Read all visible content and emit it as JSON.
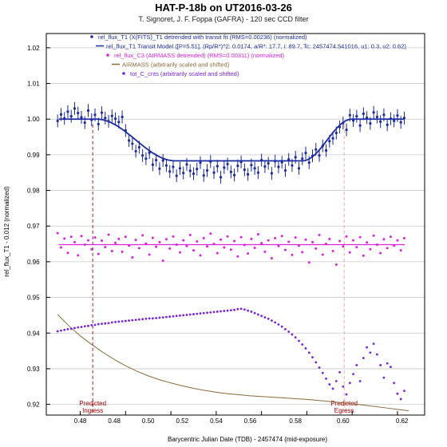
{
  "chart_data": {
    "type": "scatter",
    "title": "HAT-P-18b on UT2016-03-26",
    "subtitle": "T. Signoret, J. F. Foppa (GAFRA) - 120 sec CCD filter",
    "xlabel": "Barycentric Julian Date (TDB) - 2457474 (mid-exposure)",
    "ylabel": "rel_flux_T1 - 0.012 (normalized)",
    "xlim": [
      0.465,
      0.632
    ],
    "ylim": [
      0.917,
      1.024
    ],
    "yticks": [
      1.02,
      1.01,
      1.0,
      0.99,
      0.98,
      0.97,
      0.96,
      0.95,
      0.94,
      0.93,
      0.92
    ],
    "xticks": [
      0.48,
      0.5,
      0.52,
      0.54,
      0.56,
      0.58,
      0.6,
      0.62
    ],
    "ytick_labels": [
      "1.02",
      "1.01",
      "1.00",
      "0.99",
      "0.98",
      "0.97",
      "0.96",
      "0.95",
      "0.94",
      "0.93",
      "0.92"
    ],
    "xtick_labels": [
      "0.48",
      "0.48",
      "0.50",
      "0.52",
      "0.54",
      "0.56",
      "0.58",
      "0.60",
      "0.62"
    ],
    "xtick_label_positions": [
      0.48,
      0.495,
      0.51,
      0.525,
      0.54,
      0.555,
      0.575,
      0.596,
      0.622
    ],
    "grid": true,
    "legend": [
      {
        "label": "rel_flux_T1 (X(FITS)_T1 detrended with transit fit (RMS=0.00236) (normalized)",
        "color": "#1a2aa0",
        "marker": "dot-errorbar"
      },
      {
        "label": "rel_flux_T1 Transit Model ([P=5.51], (Rp/R*)^2: 0.0174, a/R*: 17.7, i: 89.7, Tc: 2457474.541016, u1: 0.3, u2: 0.62)",
        "color": "#1a2aa0",
        "marker": "line"
      },
      {
        "label": "rel_flux_C3 (AIRMASS detrended) (RMS=0.00311) (normalized)",
        "color": "#dd22dd",
        "marker": "dot"
      },
      {
        "label": "AIRMASS (arbitrarily scaled and shifted)",
        "color": "#8b6a3a",
        "marker": "line"
      },
      {
        "label": "tot_C_cnts (arbitrarily scaled and shifted)",
        "color": "#7a22dd",
        "marker": "dot"
      }
    ],
    "annotations": [
      {
        "text": [
          "Predicted",
          "Ingress"
        ],
        "x": 0.4855
      },
      {
        "text": [
          "Predicted",
          "Egress"
        ],
        "x": 0.5965
      }
    ],
    "model": {
      "baseline": 1.0,
      "depth_flux": 0.9883,
      "ingress_start": 0.487,
      "ingress_end": 0.522,
      "egress_start": 0.578,
      "egress_end": 0.6
    },
    "comparison_level": 0.9648,
    "series": [
      {
        "name": "rel_flux_T1",
        "x": [
          0.47,
          0.4715,
          0.473,
          0.4745,
          0.476,
          0.4775,
          0.479,
          0.4805,
          0.482,
          0.4835,
          0.485,
          0.4865,
          0.488,
          0.4895,
          0.491,
          0.4925,
          0.494,
          0.4955,
          0.497,
          0.4985,
          0.5,
          0.5015,
          0.503,
          0.5045,
          0.506,
          0.5075,
          0.509,
          0.5105,
          0.512,
          0.5135,
          0.515,
          0.5165,
          0.518,
          0.5195,
          0.521,
          0.5225,
          0.524,
          0.5255,
          0.527,
          0.5285,
          0.53,
          0.5315,
          0.533,
          0.5345,
          0.536,
          0.5375,
          0.539,
          0.5405,
          0.542,
          0.5435,
          0.545,
          0.5465,
          0.548,
          0.5495,
          0.551,
          0.5525,
          0.554,
          0.5555,
          0.557,
          0.5585,
          0.56,
          0.5615,
          0.563,
          0.5645,
          0.566,
          0.5675,
          0.569,
          0.5705,
          0.572,
          0.5735,
          0.575,
          0.5765,
          0.578,
          0.5795,
          0.581,
          0.5825,
          0.584,
          0.5855,
          0.587,
          0.5885,
          0.59,
          0.5915,
          0.593,
          0.5945,
          0.596,
          0.5975,
          0.599,
          0.6005,
          0.602,
          0.6035,
          0.605,
          0.6065,
          0.608,
          0.6095,
          0.611,
          0.6125,
          0.614,
          0.6155,
          0.617,
          0.6185,
          0.62,
          0.6215,
          0.623
        ],
        "y": [
          0.9995,
          1.0013,
          1.0002,
          1.0021,
          1.0008,
          1.003,
          1.0017,
          1.0005,
          0.999,
          1.0024,
          0.9998,
          1.0012,
          0.9986,
          1.0018,
          1.0003,
          0.9994,
          1.0009,
          1.0001,
          0.9992,
          1.0006,
          0.9968,
          0.994,
          0.9931,
          0.991,
          0.9921,
          0.9898,
          0.9889,
          0.9906,
          0.9872,
          0.9885,
          0.9861,
          0.9884,
          0.987,
          0.9853,
          0.9866,
          0.9841,
          0.9862,
          0.9849,
          0.9873,
          0.9855,
          0.9847,
          0.986,
          0.9878,
          0.9842,
          0.9856,
          0.9881,
          0.985,
          0.9868,
          0.9837,
          0.9864,
          0.9874,
          0.9852,
          0.9843,
          0.9869,
          0.988,
          0.9858,
          0.9845,
          0.9871,
          0.9862,
          0.985,
          0.9885,
          0.9867,
          0.9876,
          0.9848,
          0.9882,
          0.9866,
          0.9879,
          0.9856,
          0.9887,
          0.987,
          0.9893,
          0.9862,
          0.9889,
          0.9905,
          0.9878,
          0.9897,
          0.9915,
          0.9898,
          0.9925,
          0.9912,
          0.9938,
          0.9946,
          0.9961,
          0.9978,
          0.9989,
          0.997,
          1.0011,
          0.9996,
          1.0008,
          0.9982,
          1.0015,
          1.0004,
          0.9988,
          1.0019,
          1.0006,
          0.9993,
          1.0012,
          0.9984,
          1.0001,
          0.9995,
          1.001,
          0.9991,
          1.0003
        ],
        "err": 0.0018,
        "color": "#1a2aa0"
      },
      {
        "name": "rel_flux_C3",
        "x": [
          0.47,
          0.4715,
          0.473,
          0.4745,
          0.476,
          0.4775,
          0.479,
          0.4805,
          0.482,
          0.4835,
          0.485,
          0.4865,
          0.488,
          0.4895,
          0.491,
          0.4925,
          0.494,
          0.4955,
          0.497,
          0.4985,
          0.5,
          0.5015,
          0.503,
          0.5045,
          0.506,
          0.5075,
          0.509,
          0.5105,
          0.512,
          0.5135,
          0.515,
          0.5165,
          0.518,
          0.5195,
          0.521,
          0.5225,
          0.524,
          0.5255,
          0.527,
          0.5285,
          0.53,
          0.5315,
          0.533,
          0.5345,
          0.536,
          0.5375,
          0.539,
          0.5405,
          0.542,
          0.5435,
          0.545,
          0.5465,
          0.548,
          0.5495,
          0.551,
          0.5525,
          0.554,
          0.5555,
          0.557,
          0.5585,
          0.56,
          0.5615,
          0.563,
          0.5645,
          0.566,
          0.5675,
          0.569,
          0.5705,
          0.572,
          0.5735,
          0.575,
          0.5765,
          0.578,
          0.5795,
          0.581,
          0.5825,
          0.584,
          0.5855,
          0.587,
          0.5885,
          0.59,
          0.5915,
          0.593,
          0.5945,
          0.596,
          0.5975,
          0.599,
          0.6005,
          0.602,
          0.6035,
          0.605,
          0.6065,
          0.608,
          0.6095,
          0.611,
          0.6125,
          0.614,
          0.6155,
          0.617,
          0.6185,
          0.62,
          0.6215,
          0.623
        ],
        "y": [
          0.968,
          0.964,
          0.9665,
          0.9625,
          0.967,
          0.9655,
          0.9618,
          0.9672,
          0.9648,
          0.966,
          0.9635,
          0.9668,
          0.9622,
          0.9659,
          0.9641,
          0.9676,
          0.963,
          0.9653,
          0.9664,
          0.9628,
          0.967,
          0.9645,
          0.9612,
          0.9661,
          0.9638,
          0.9674,
          0.9651,
          0.962,
          0.9667,
          0.9642,
          0.9655,
          0.9603,
          0.9663,
          0.9637,
          0.9671,
          0.9648,
          0.9626,
          0.966,
          0.9644,
          0.9675,
          0.9632,
          0.9657,
          0.9618,
          0.9666,
          0.9643,
          0.9679,
          0.965,
          0.9624,
          0.9662,
          0.964,
          0.9671,
          0.9634,
          0.9658,
          0.9615,
          0.9669,
          0.9647,
          0.9623,
          0.9664,
          0.9639,
          0.9677,
          0.9652,
          0.9628,
          0.966,
          0.961,
          0.9666,
          0.9644,
          0.9672,
          0.9633,
          0.9656,
          0.9619,
          0.9668,
          0.9645,
          0.9627,
          0.9662,
          0.9598,
          0.9655,
          0.9637,
          0.9675,
          0.962,
          0.965,
          0.9664,
          0.963,
          0.9592,
          0.9658,
          0.9643,
          0.9671,
          0.9626,
          0.966,
          0.9641,
          0.9669,
          0.9617,
          0.9654,
          0.9635,
          0.9673,
          0.9648,
          0.9624,
          0.9663,
          0.9638,
          0.967,
          0.9645,
          0.966,
          0.9632,
          0.9666
        ],
        "color": "#dd22dd"
      },
      {
        "name": "tot_C_cnts",
        "x": [
          0.47,
          0.4715,
          0.473,
          0.4745,
          0.476,
          0.4775,
          0.479,
          0.4805,
          0.482,
          0.4835,
          0.485,
          0.4865,
          0.488,
          0.4895,
          0.491,
          0.4925,
          0.494,
          0.4955,
          0.497,
          0.4985,
          0.5,
          0.5015,
          0.503,
          0.5045,
          0.506,
          0.5075,
          0.509,
          0.5105,
          0.512,
          0.5135,
          0.515,
          0.5165,
          0.518,
          0.5195,
          0.521,
          0.5225,
          0.524,
          0.5255,
          0.527,
          0.5285,
          0.53,
          0.5315,
          0.533,
          0.5345,
          0.536,
          0.5375,
          0.539,
          0.5405,
          0.542,
          0.5435,
          0.545,
          0.5465,
          0.548,
          0.5495,
          0.551,
          0.5525,
          0.554,
          0.5555,
          0.557,
          0.5585,
          0.56,
          0.5615,
          0.563,
          0.5645,
          0.566,
          0.5675,
          0.569,
          0.5705,
          0.572,
          0.5735,
          0.575,
          0.5765,
          0.578,
          0.5795,
          0.581,
          0.5825,
          0.584,
          0.5855,
          0.587,
          0.5885,
          0.59,
          0.5915,
          0.593,
          0.5945,
          0.596,
          0.5975,
          0.599,
          0.6005,
          0.602,
          0.6035,
          0.605,
          0.6065,
          0.608,
          0.6095,
          0.611,
          0.6125,
          0.614,
          0.6155,
          0.617,
          0.6185,
          0.62,
          0.6215,
          0.623
        ],
        "y": [
          0.9405,
          0.9407,
          0.9409,
          0.9411,
          0.9412,
          0.9414,
          0.9416,
          0.9417,
          0.9419,
          0.942,
          0.9422,
          0.9423,
          0.9425,
          0.9426,
          0.9427,
          0.9428,
          0.943,
          0.9431,
          0.9432,
          0.9433,
          0.9434,
          0.9435,
          0.9436,
          0.9437,
          0.9438,
          0.9439,
          0.944,
          0.9441,
          0.9441,
          0.9442,
          0.9443,
          0.9444,
          0.9445,
          0.9446,
          0.9447,
          0.9448,
          0.9449,
          0.945,
          0.9451,
          0.9452,
          0.9453,
          0.9454,
          0.9455,
          0.9456,
          0.9457,
          0.9458,
          0.9459,
          0.946,
          0.9461,
          0.9462,
          0.9463,
          0.9464,
          0.9465,
          0.9467,
          0.9468,
          0.9466,
          0.9463,
          0.946,
          0.9456,
          0.9452,
          0.9448,
          0.9444,
          0.944,
          0.9435,
          0.943,
          0.9424,
          0.9418,
          0.9411,
          0.9404,
          0.9396,
          0.9388,
          0.9378,
          0.9368,
          0.9357,
          0.9345,
          0.9332,
          0.9318,
          0.9303,
          0.9288,
          0.9272,
          0.9256,
          0.9244,
          0.9265,
          0.929,
          0.925,
          0.9228,
          0.926,
          0.9285,
          0.931,
          0.9265,
          0.933,
          0.936,
          0.9345,
          0.937,
          0.934,
          0.931,
          0.9275,
          0.9315,
          0.9305,
          0.926,
          0.923,
          0.9215,
          0.9238
        ],
        "color": "#7a22dd"
      },
      {
        "name": "AIRMASS",
        "x": [
          0.47,
          0.475,
          0.48,
          0.485,
          0.49,
          0.495,
          0.5,
          0.505,
          0.51,
          0.515,
          0.52,
          0.525,
          0.53,
          0.535,
          0.54,
          0.545,
          0.55,
          0.555,
          0.56,
          0.565,
          0.57,
          0.575,
          0.58,
          0.585,
          0.59,
          0.595,
          0.6,
          0.605,
          0.61,
          0.615,
          0.62,
          0.625
        ],
        "y": [
          0.9452,
          0.942,
          0.9392,
          0.9368,
          0.9346,
          0.9326,
          0.9308,
          0.9293,
          0.928,
          0.9269,
          0.926,
          0.9252,
          0.9245,
          0.9239,
          0.9234,
          0.923,
          0.9227,
          0.9224,
          0.9222,
          0.922,
          0.9218,
          0.9216,
          0.9214,
          0.9211,
          0.9208,
          0.9205,
          0.9202,
          0.9198,
          0.9194,
          0.919,
          0.9186,
          0.9182
        ],
        "color": "#8b6a3a"
      }
    ]
  }
}
